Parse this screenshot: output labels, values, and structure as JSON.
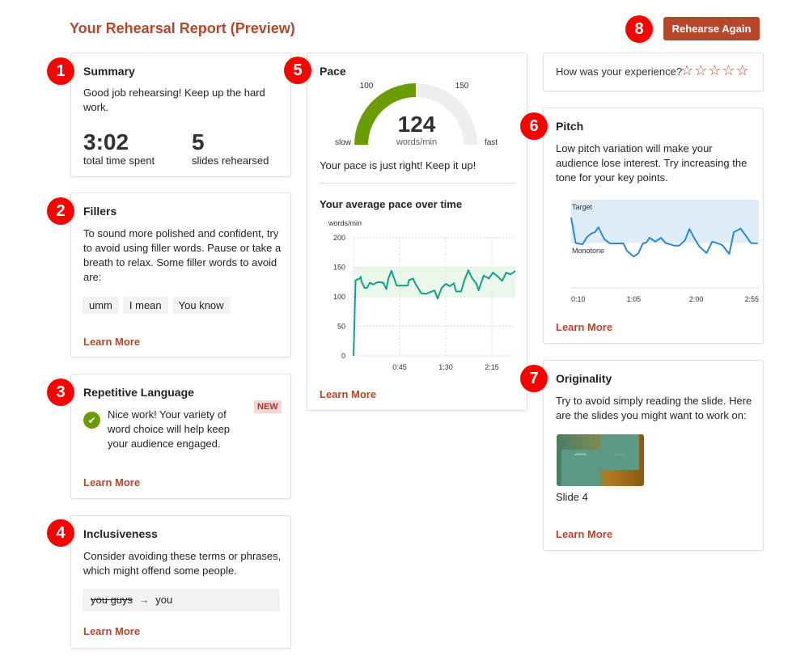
{
  "header": {
    "title": "Your Rehearsal Report (Preview)",
    "rehearse_again": "Rehearse Again"
  },
  "badges": [
    "1",
    "2",
    "3",
    "4",
    "5",
    "6",
    "7",
    "8"
  ],
  "summary": {
    "title": "Summary",
    "text": "Good job rehearsing! Keep up the hard work.",
    "time_value": "3:02",
    "time_label": "total time spent",
    "slides_value": "5",
    "slides_label": "slides rehearsed"
  },
  "fillers": {
    "title": "Fillers",
    "text": "To sound more polished and confident, try to avoid using filler words. Pause or take a breath to relax. Some filler words to avoid are:",
    "chips": [
      "umm",
      "I mean",
      "You know"
    ],
    "learn_more": "Learn More"
  },
  "repetitive": {
    "title": "Repetitive Language",
    "new_badge": "NEW",
    "text": "Nice work! Your variety of word choice will help keep your audience engaged.",
    "learn_more": "Learn More",
    "icon": "check-circle-icon"
  },
  "inclusiveness": {
    "title": "Inclusiveness",
    "text": "Consider avoiding these terms or phrases, which might offend some people.",
    "term": "you guys",
    "arrow": "→",
    "replacement": "you",
    "learn_more": "Learn More"
  },
  "pace": {
    "title": "Pace",
    "gauge": {
      "value": "124",
      "unit": "words/min",
      "label_slow": "slow",
      "label_fast": "fast",
      "label_low": "100",
      "label_high": "150",
      "fill_to": 100,
      "gauge_min": 50,
      "gauge_max": 200
    },
    "message": "Your pace is just right! Keep it up!",
    "chart_title": "Your average pace over time",
    "learn_more": "Learn More"
  },
  "rating": {
    "question": "How was your experience?",
    "stars": 5,
    "rating": 0
  },
  "pitch": {
    "title": "Pitch",
    "text": "Low pitch variation will make your audience lose interest. Try increasing the tone for your key points.",
    "learn_more": "Learn More"
  },
  "originality": {
    "title": "Originality",
    "text": "Try to avoid simply reading the slide. Here are the slides you might want to work on:",
    "slide_label": "Slide 4",
    "thumb_left": "WATER",
    "thumb_right": "GOLD",
    "learn_more": "Learn More"
  },
  "colors": {
    "accent": "#b7472a",
    "badge": "#ff0000",
    "gauge_green": "#6a9e00",
    "pace_line": "#11a08a",
    "pitch_line": "#2b88d8",
    "target_band": "#deedf9",
    "pace_band": "#eaf7ea"
  },
  "chart_data": [
    {
      "type": "line",
      "title": "Your average pace over time",
      "ylabel": "words/min",
      "ylim": [
        0,
        200
      ],
      "yticks": [
        "0",
        "50",
        "100",
        "150",
        "200"
      ],
      "xticks": [
        "0:45",
        "1:30",
        "2:15"
      ],
      "target_range": [
        100,
        150
      ],
      "grid": true,
      "points": [
        [
          "0:00",
          0
        ],
        [
          "0:02",
          128
        ],
        [
          "0:06",
          131
        ],
        [
          "0:07",
          134
        ],
        [
          "0:08",
          125
        ],
        [
          "0:11",
          115
        ],
        [
          "0:13",
          115
        ],
        [
          "0:16",
          124
        ],
        [
          "0:19",
          121
        ],
        [
          "0:24",
          125
        ],
        [
          "0:29",
          124
        ],
        [
          "0:32",
          113
        ],
        [
          "0:34",
          131
        ],
        [
          "0:37",
          144
        ],
        [
          "0:40",
          129
        ],
        [
          "0:42",
          119
        ],
        [
          "0:53",
          119
        ],
        [
          "0:54",
          128
        ],
        [
          "0:58",
          131
        ],
        [
          "1:01",
          120
        ],
        [
          "1:03",
          115
        ],
        [
          "1:06",
          106
        ],
        [
          "1:11",
          105
        ],
        [
          "1:19",
          111
        ],
        [
          "1:22",
          97
        ],
        [
          "1:26",
          115
        ],
        [
          "1:30",
          122
        ],
        [
          "1:34",
          118
        ],
        [
          "1:38",
          123
        ],
        [
          "1:40",
          109
        ],
        [
          "1:45",
          109
        ],
        [
          "1:48",
          127
        ],
        [
          "1:52",
          145
        ],
        [
          "1:56",
          131
        ],
        [
          "2:00",
          122
        ],
        [
          "2:02",
          111
        ],
        [
          "2:07",
          136
        ],
        [
          "2:12",
          131
        ],
        [
          "2:16",
          141
        ],
        [
          "2:21",
          134
        ],
        [
          "2:25",
          127
        ],
        [
          "2:29",
          141
        ],
        [
          "2:33",
          138
        ],
        [
          "2:38",
          144
        ]
      ]
    },
    {
      "type": "line",
      "band_labels": [
        "Target",
        "Monotone"
      ],
      "xticks": [
        "0:10",
        "1:05",
        "2:00",
        "2:55"
      ],
      "xlim": [
        "0:10",
        "2:55"
      ],
      "points": [
        [
          "0:10",
          0.59
        ],
        [
          "0:14",
          0.01
        ],
        [
          "0:20",
          -0.02
        ],
        [
          "0:24",
          0.15
        ],
        [
          "0:28",
          0.23
        ],
        [
          "0:31",
          0.26
        ],
        [
          "0:34",
          0.37
        ],
        [
          "0:39",
          0.1
        ],
        [
          "0:44",
          0
        ],
        [
          "0:56",
          0
        ],
        [
          "0:59",
          -0.17
        ],
        [
          "1:05",
          -0.3
        ],
        [
          "1:09",
          -0.23
        ],
        [
          "1:13",
          0
        ],
        [
          "1:16",
          0.02
        ],
        [
          "1:19",
          0.13
        ],
        [
          "1:24",
          0.04
        ],
        [
          "1:29",
          0.13
        ],
        [
          "1:33",
          0.01
        ],
        [
          "1:41",
          -0.05
        ],
        [
          "1:45",
          -0.05
        ],
        [
          "1:50",
          0.07
        ],
        [
          "1:54",
          0.33
        ],
        [
          "1:58",
          0.13
        ],
        [
          "2:03",
          -0.08
        ],
        [
          "2:09",
          -0.22
        ],
        [
          "2:14",
          0.04
        ],
        [
          "2:18",
          0.01
        ],
        [
          "2:23",
          -0.04
        ],
        [
          "2:29",
          -0.24
        ],
        [
          "2:33",
          0.26
        ],
        [
          "2:39",
          0.34
        ],
        [
          "2:43",
          0.2
        ],
        [
          "2:48",
          0.01
        ],
        [
          "2:54",
          0
        ]
      ]
    }
  ]
}
